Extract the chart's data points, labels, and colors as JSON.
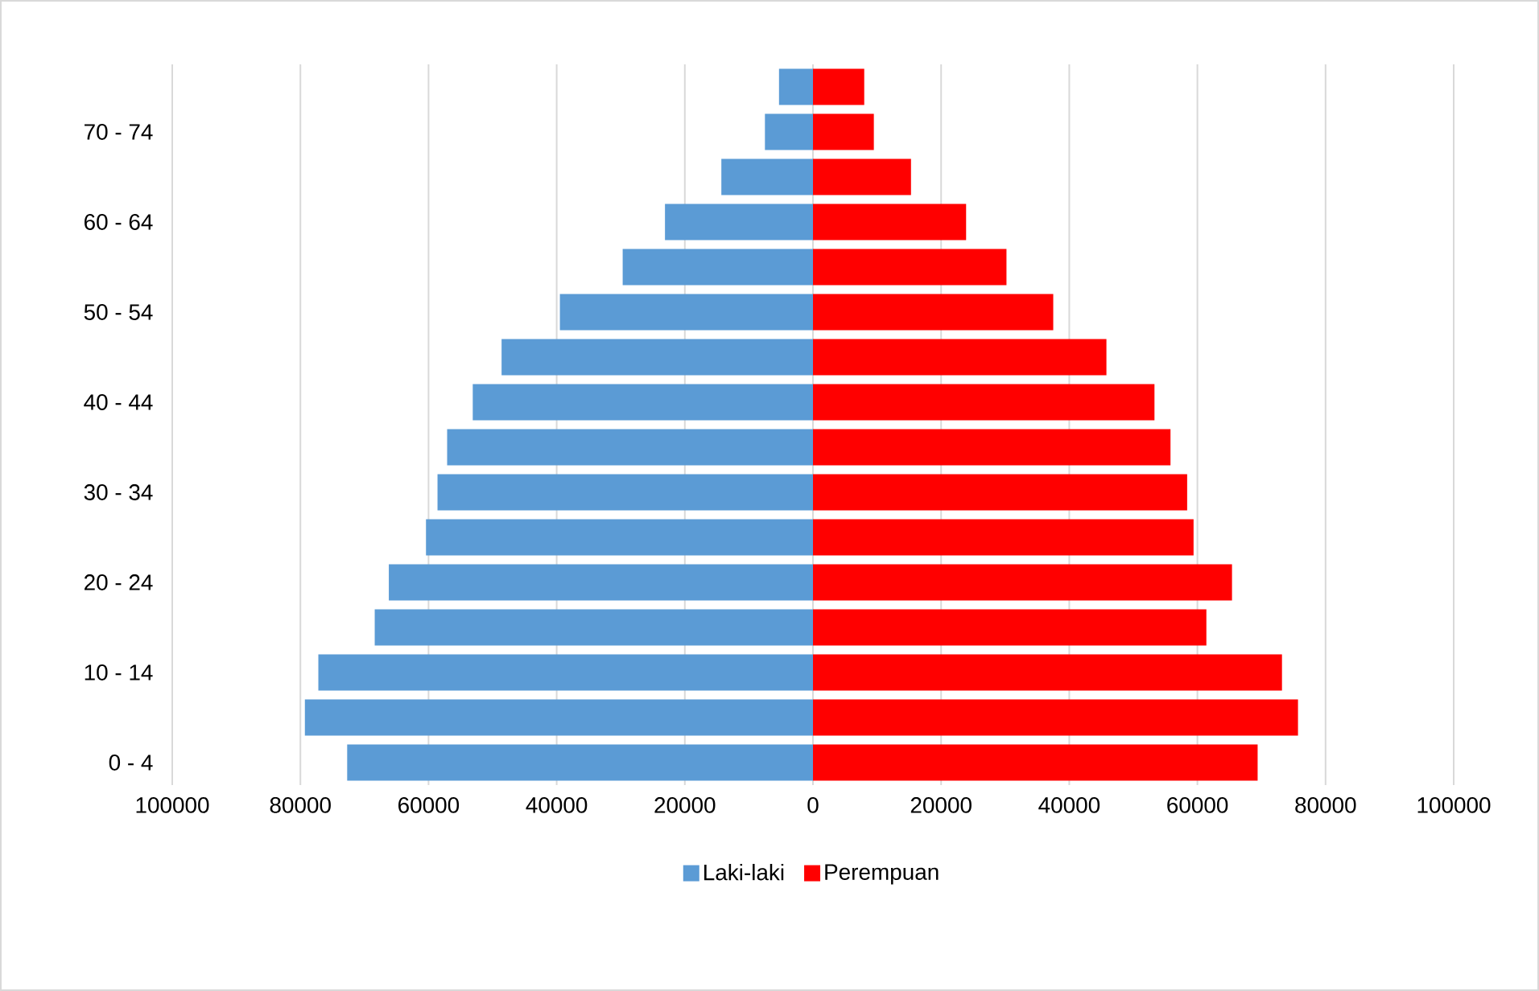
{
  "chart_data": {
    "type": "bar",
    "orientation": "horizontal",
    "categories": [
      null,
      "70 - 74",
      null,
      "60 - 64",
      null,
      "50 - 54",
      null,
      "40 - 44",
      null,
      "30 - 34",
      null,
      "20 - 24",
      null,
      "10 - 14",
      null,
      "0 - 4"
    ],
    "series": [
      {
        "name": "Laki-laki",
        "color": "#5b9bd5",
        "values": [
          -5300,
          -7500,
          -14300,
          -23100,
          -29700,
          -39500,
          -48600,
          -53100,
          -57100,
          -58600,
          -60400,
          -66200,
          -68400,
          -77200,
          -79300,
          -72700
        ]
      },
      {
        "name": "Perempuan",
        "color": "#ff0000",
        "values": [
          8000,
          9500,
          15300,
          23900,
          30200,
          37500,
          45800,
          53300,
          55800,
          58400,
          59400,
          65400,
          61400,
          73200,
          75700,
          69400
        ]
      }
    ],
    "xlim": [
      -100000,
      100000
    ],
    "xticks": [
      {
        "value": -100000,
        "label": "100000"
      },
      {
        "value": -80000,
        "label": "80000"
      },
      {
        "value": -60000,
        "label": "60000"
      },
      {
        "value": -40000,
        "label": "40000"
      },
      {
        "value": -20000,
        "label": "20000"
      },
      0,
      20000,
      40000,
      60000,
      80000,
      100000
    ],
    "grid": "x",
    "legend": "bottom",
    "stacked": true
  }
}
